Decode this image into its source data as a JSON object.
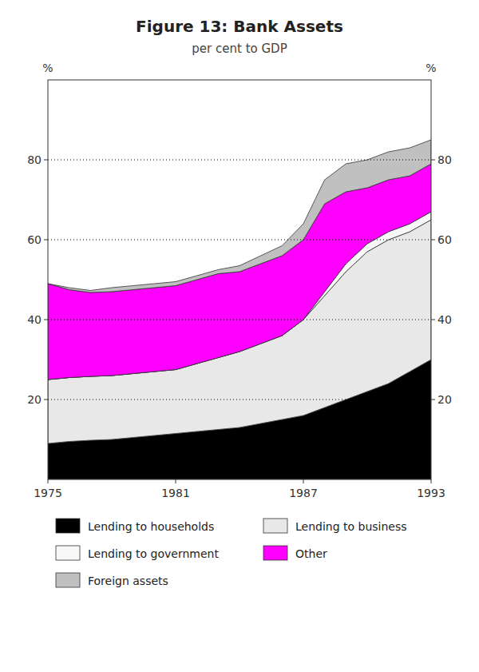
{
  "chart_data": {
    "type": "area",
    "stacked": true,
    "title": "Figure 13: Bank Assets",
    "subtitle": "per cent to GDP",
    "ylabel": "%",
    "y2label": "%",
    "x": [
      1975,
      1976,
      1977,
      1978,
      1979,
      1980,
      1981,
      1982,
      1983,
      1984,
      1985,
      1986,
      1987,
      1988,
      1989,
      1990,
      1991,
      1992,
      1993
    ],
    "xlim": [
      1975,
      1993
    ],
    "xticks": [
      1975,
      1981,
      1987,
      1993
    ],
    "ylim": [
      0,
      100
    ],
    "yticks": [
      20,
      40,
      60,
      80
    ],
    "y2lim": [
      0,
      100
    ],
    "y2ticks": [
      20,
      40,
      60,
      80
    ],
    "grid": true,
    "legend": "bottom",
    "series": [
      {
        "name": "Lending to households",
        "color": "#000000",
        "values": [
          9,
          9.5,
          9.8,
          10,
          10.5,
          11,
          11.5,
          12,
          12.5,
          13,
          14,
          15,
          16,
          18,
          20,
          22,
          24,
          27,
          30
        ]
      },
      {
        "name": "Lending to business",
        "color": "#e8e8e8",
        "values": [
          16,
          16,
          16,
          16,
          16,
          16,
          16,
          17,
          18,
          19,
          20,
          21,
          24,
          28,
          32,
          35,
          36,
          35,
          35
        ]
      },
      {
        "name": "Lending to government",
        "color": "#f8f8f8",
        "values": [
          0,
          0,
          0,
          0,
          0,
          0,
          0,
          0,
          0,
          0,
          0,
          0,
          0,
          1,
          2,
          2,
          2,
          2,
          2
        ]
      },
      {
        "name": "Other",
        "color": "#ff00ff",
        "values": [
          24,
          22,
          21,
          21,
          21,
          21,
          21,
          21,
          21,
          20,
          20,
          20,
          20,
          22,
          18,
          14,
          13,
          12,
          12
        ]
      },
      {
        "name": "Foreign assets",
        "color": "#c0c0c0",
        "values": [
          0,
          0.5,
          0.5,
          1,
          1,
          1,
          1,
          1,
          1,
          1.5,
          2,
          2.5,
          4,
          6,
          7,
          7,
          7,
          7,
          6
        ]
      }
    ]
  }
}
